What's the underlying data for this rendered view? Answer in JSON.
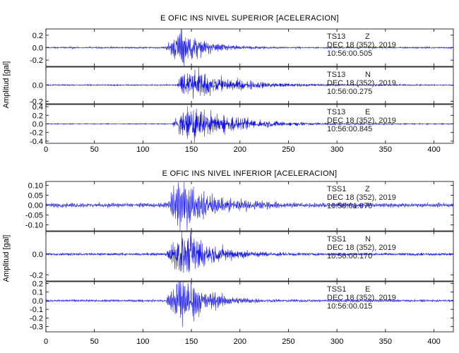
{
  "colors": {
    "trace": "#1414e6",
    "axis": "#000000"
  },
  "chart_data": [
    {
      "type": "line",
      "title": "E OFIC INS NIVEL SUPERIOR [ACELERACION]",
      "ylabel": "Amplitud [gal]",
      "xlim": [
        0,
        420
      ],
      "xticks": [
        0,
        50,
        100,
        150,
        200,
        250,
        300,
        350,
        400
      ],
      "grid": false,
      "panels": [
        {
          "channel": "TS13 Z",
          "station": "TS13",
          "component": "Z",
          "date": "DEC 18 (352), 2019",
          "time": "10:56:00.505",
          "ylim": [
            -0.3,
            0.3
          ],
          "yticks": [
            -0.2,
            0.0,
            0.2
          ],
          "ytick_labels": [
            "-0.2",
            "0.0",
            "0.2"
          ],
          "waveform": {
            "noise_amp": 0.012,
            "onset_s": 123,
            "peak_amp": 0.29,
            "peak_s": 140,
            "decay_s": 22,
            "freq_hz": 2.3
          }
        },
        {
          "channel": "TS13 N",
          "station": "TS13",
          "component": "N",
          "date": "DEC 18 (352), 2019",
          "time": "10:56:00.275",
          "ylim": [
            -0.23,
            0.22
          ],
          "yticks": [
            -0.2,
            0.0
          ],
          "ytick_labels": [
            "-0.2",
            "0.0"
          ],
          "waveform": {
            "noise_amp": 0.007,
            "onset_s": 135,
            "peak_amp": 0.21,
            "peak_s": 145,
            "decay_s": 40,
            "freq_hz": 1.5
          }
        },
        {
          "channel": "TS13 E",
          "station": "TS13",
          "component": "E",
          "date": "DEC 18 (352), 2019",
          "time": "10:56:00.845",
          "ylim": [
            -0.45,
            0.45
          ],
          "yticks": [
            -0.4,
            -0.2,
            0.0,
            0.2,
            0.4
          ],
          "ytick_labels": [
            "-0.4",
            "-0.2",
            "0.0",
            "0.2",
            "0.4"
          ],
          "waveform": {
            "noise_amp": 0.01,
            "onset_s": 130,
            "peak_amp": 0.4,
            "peak_s": 147,
            "decay_s": 45,
            "freq_hz": 1.6
          }
        }
      ]
    },
    {
      "type": "line",
      "title": "E OFIC INS NIVEL INFERIOR [ACELERACION]",
      "ylabel": "Amplitud [gal]",
      "xlim": [
        0,
        420
      ],
      "xticks": [
        0,
        50,
        100,
        150,
        200,
        250,
        300,
        350,
        400
      ],
      "grid": false,
      "panels": [
        {
          "channel": "TSS1 Z",
          "station": "TSS1",
          "component": "Z",
          "date": "DEC 18 (352), 2019",
          "time": "10:56:01.970",
          "ylim": [
            -0.13,
            0.12
          ],
          "yticks": [
            -0.1,
            -0.05,
            0.0,
            0.05,
            0.1
          ],
          "ytick_labels": [
            "-0.10",
            "-0.05",
            "0.00",
            "0.05",
            "0.10"
          ],
          "waveform": {
            "noise_amp": 0.01,
            "onset_s": 123,
            "peak_amp": 0.115,
            "peak_s": 140,
            "decay_s": 30,
            "freq_hz": 2.5
          }
        },
        {
          "channel": "TSS1 N",
          "station": "TSS1",
          "component": "N",
          "date": "DEC 18 (352), 2019",
          "time": "10:56:00.170",
          "ylim": [
            -0.26,
            0.22
          ],
          "yticks": [
            -0.2,
            0.0
          ],
          "ytick_labels": [
            "-0.2",
            "0.0"
          ],
          "waveform": {
            "noise_amp": 0.012,
            "onset_s": 123,
            "peak_amp": 0.22,
            "peak_s": 142,
            "decay_s": 28,
            "freq_hz": 2.0
          }
        },
        {
          "channel": "TSS1 E",
          "station": "TSS1",
          "component": "E",
          "date": "DEC 18 (352), 2019",
          "time": "10:56:00.015",
          "ylim": [
            -0.36,
            0.22
          ],
          "yticks": [
            -0.3,
            -0.2,
            -0.1,
            0.0,
            0.1,
            0.2
          ],
          "ytick_labels": [
            "-0.3",
            "-0.2",
            "-0.1",
            "0.0",
            "0.1",
            "0.2"
          ],
          "waveform": {
            "noise_amp": 0.013,
            "onset_s": 123,
            "peak_amp": 0.3,
            "peak_s": 140,
            "decay_s": 22,
            "freq_hz": 2.4
          }
        }
      ]
    }
  ]
}
